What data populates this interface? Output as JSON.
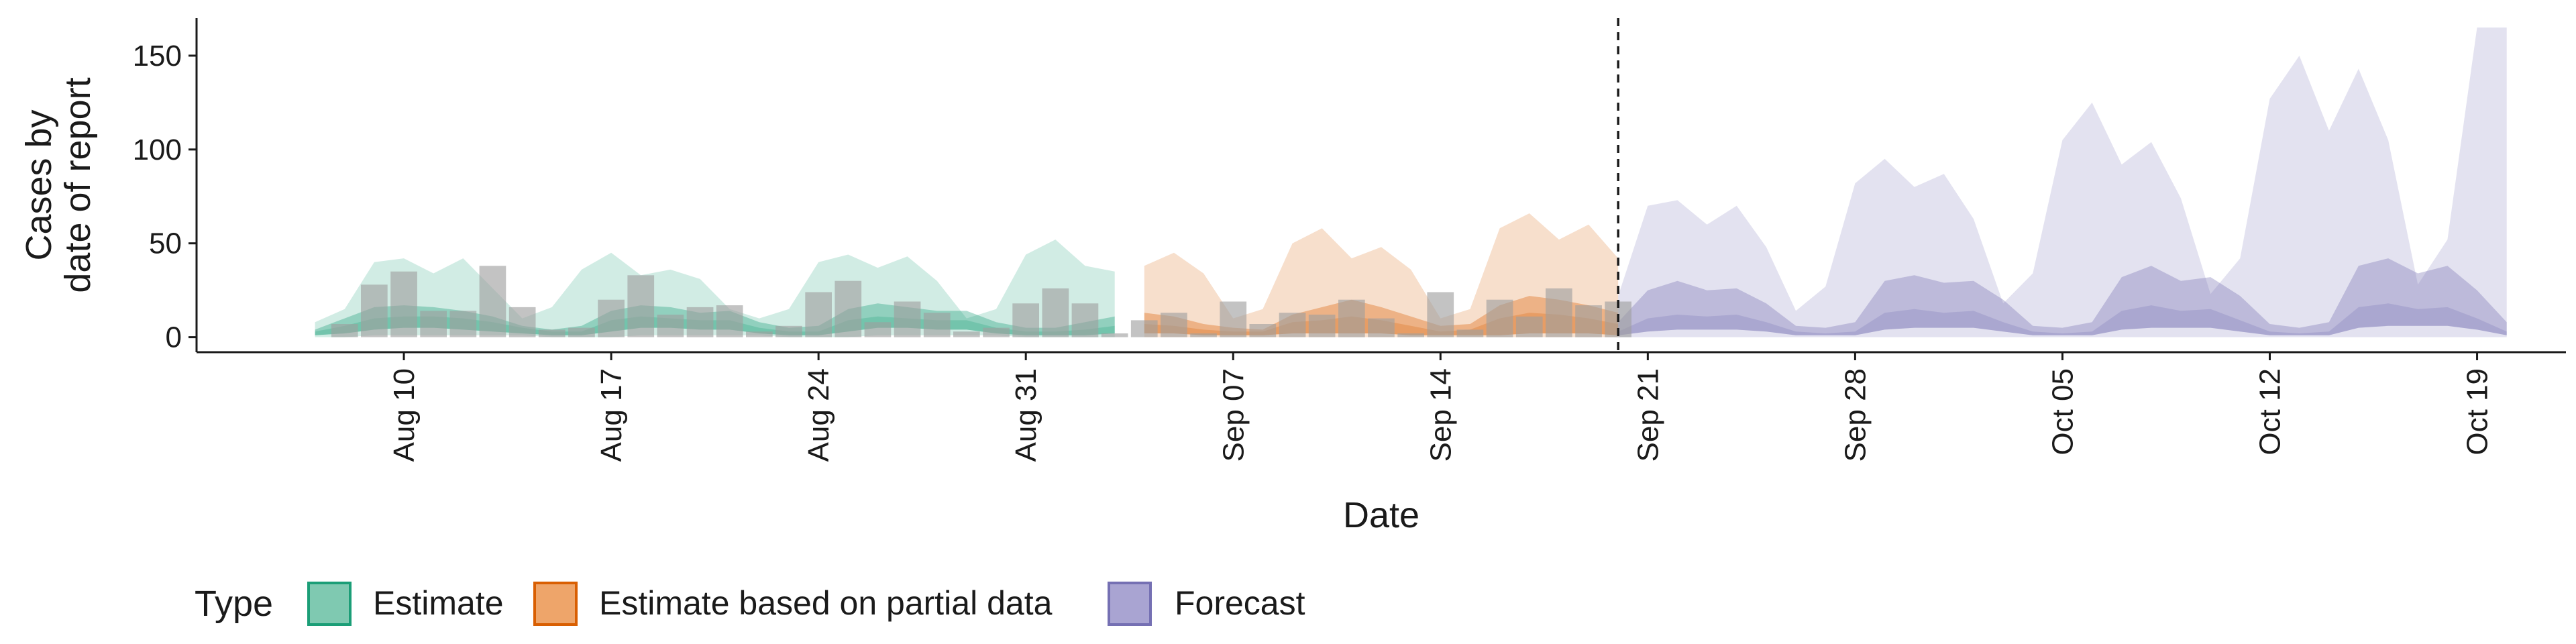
{
  "chart_data": {
    "type": "area",
    "xlabel": "Date",
    "ylabel_lines": [
      "Cases by",
      "date of report"
    ],
    "ylim": [
      -8,
      170
    ],
    "y_ticks": [
      0,
      50,
      100,
      150
    ],
    "x_start": "2020-08-03",
    "x_end": "2020-10-22",
    "x_ticks": [
      {
        "date": "2020-08-10",
        "label": "Aug 10"
      },
      {
        "date": "2020-08-17",
        "label": "Aug 17"
      },
      {
        "date": "2020-08-24",
        "label": "Aug 24"
      },
      {
        "date": "2020-08-31",
        "label": "Aug 31"
      },
      {
        "date": "2020-09-07",
        "label": "Sep 07"
      },
      {
        "date": "2020-09-14",
        "label": "Sep 14"
      },
      {
        "date": "2020-09-21",
        "label": "Sep 21"
      },
      {
        "date": "2020-09-28",
        "label": "Sep 28"
      },
      {
        "date": "2020-10-05",
        "label": "Oct 05"
      },
      {
        "date": "2020-10-12",
        "label": "Oct 12"
      },
      {
        "date": "2020-10-19",
        "label": "Oct 19"
      }
    ],
    "forecast_start_line": "2020-09-20",
    "legend": {
      "title": "Type",
      "placement": "bottom",
      "items": [
        {
          "label": "Estimate",
          "fill": "#7FC9B1",
          "stroke": "#1B9E77"
        },
        {
          "label": "Estimate based on partial data",
          "fill": "#EEA56A",
          "stroke": "#D95F02"
        },
        {
          "label": "Forecast",
          "fill": "#A9A4D2",
          "stroke": "#7570B3"
        }
      ]
    },
    "colors": {
      "Estimate": "#1B9E77",
      "Estimate based on partial data": "#D95F02",
      "Forecast": "#7570B3",
      "bars": "#9e9e9e"
    },
    "bars": {
      "start": "2020-08-08",
      "values": [
        7,
        28,
        35,
        14,
        14,
        38,
        16,
        4,
        5,
        20,
        33,
        12,
        16,
        17,
        3,
        6,
        24,
        30,
        8,
        19,
        13,
        3,
        5,
        18,
        26,
        18,
        2,
        9,
        13,
        2,
        19,
        7,
        13,
        12,
        20,
        10,
        2,
        24,
        4,
        20,
        11,
        26,
        17,
        19
      ]
    },
    "series": [
      {
        "name": "Estimate",
        "start": "2020-08-07",
        "lower90": [
          0,
          0,
          1,
          1,
          1,
          1,
          1,
          1,
          0,
          0,
          0,
          1,
          1,
          1,
          1,
          1,
          0,
          0,
          0,
          1,
          1,
          1,
          1,
          1,
          0,
          0,
          0,
          0
        ],
        "lower50": [
          1,
          2,
          4,
          5,
          5,
          4,
          3,
          2,
          1,
          1,
          3,
          5,
          5,
          4,
          4,
          2,
          1,
          1,
          3,
          5,
          5,
          4,
          4,
          2,
          1,
          1,
          1,
          2
        ],
        "median": [
          3,
          6,
          10,
          11,
          11,
          10,
          8,
          5,
          3,
          3,
          9,
          11,
          10,
          9,
          9,
          5,
          3,
          3,
          9,
          11,
          10,
          9,
          9,
          5,
          3,
          3,
          4,
          6
        ],
        "upper50": [
          4,
          10,
          16,
          17,
          16,
          14,
          11,
          6,
          4,
          6,
          14,
          17,
          16,
          13,
          14,
          8,
          5,
          6,
          15,
          18,
          16,
          14,
          14,
          8,
          5,
          5,
          8,
          11
        ],
        "upper90": [
          8,
          15,
          40,
          42,
          34,
          42,
          26,
          10,
          16,
          36,
          45,
          33,
          36,
          31,
          15,
          10,
          15,
          40,
          44,
          37,
          43,
          30,
          10,
          15,
          44,
          52,
          38,
          35
        ]
      },
      {
        "name": "Estimate based on partial data",
        "start": "2020-09-04",
        "lower90": [
          0,
          0,
          0,
          0,
          0,
          0,
          0,
          0,
          0,
          0,
          0,
          0,
          0,
          0,
          0,
          0,
          0
        ],
        "lower50": [
          2,
          2,
          1,
          1,
          1,
          2,
          2,
          2,
          2,
          1,
          1,
          1,
          1,
          2,
          2,
          2,
          1
        ],
        "median": [
          7,
          6,
          4,
          3,
          3,
          8,
          9,
          11,
          9,
          6,
          3,
          4,
          10,
          13,
          12,
          10,
          7
        ],
        "upper50": [
          13,
          11,
          7,
          5,
          4,
          12,
          16,
          20,
          16,
          11,
          6,
          7,
          17,
          22,
          20,
          17,
          13
        ],
        "upper90": [
          38,
          45,
          34,
          10,
          15,
          50,
          58,
          42,
          48,
          36,
          10,
          15,
          58,
          66,
          52,
          60,
          42
        ]
      },
      {
        "name": "Forecast",
        "start": "2020-09-20",
        "lower90": [
          0,
          0,
          0,
          0,
          0,
          0,
          0,
          0,
          0,
          0,
          0,
          0,
          0,
          0,
          0,
          0,
          0,
          0,
          0,
          0,
          0,
          0,
          0,
          0,
          0,
          0,
          0,
          0,
          0,
          0,
          0
        ],
        "lower50": [
          1,
          3,
          4,
          4,
          4,
          3,
          1,
          1,
          1,
          4,
          5,
          5,
          5,
          3,
          1,
          1,
          1,
          4,
          5,
          5,
          5,
          3,
          1,
          1,
          1,
          5,
          6,
          6,
          6,
          4,
          1
        ],
        "median": [
          3,
          10,
          12,
          11,
          12,
          8,
          3,
          2,
          3,
          13,
          15,
          13,
          14,
          8,
          3,
          2,
          3,
          14,
          17,
          14,
          15,
          9,
          3,
          2,
          3,
          16,
          18,
          15,
          16,
          10,
          3
        ],
        "upper50": [
          8,
          25,
          30,
          25,
          26,
          18,
          6,
          5,
          8,
          30,
          33,
          29,
          30,
          20,
          6,
          5,
          8,
          32,
          38,
          30,
          32,
          22,
          7,
          5,
          8,
          38,
          42,
          34,
          38,
          25,
          8
        ],
        "upper90": [
          22,
          70,
          73,
          60,
          70,
          48,
          14,
          27,
          82,
          95,
          80,
          87,
          63,
          18,
          34,
          105,
          125,
          92,
          104,
          74,
          23,
          42,
          127,
          150,
          110,
          143,
          105,
          28,
          52,
          165,
          165
        ]
      }
    ]
  }
}
